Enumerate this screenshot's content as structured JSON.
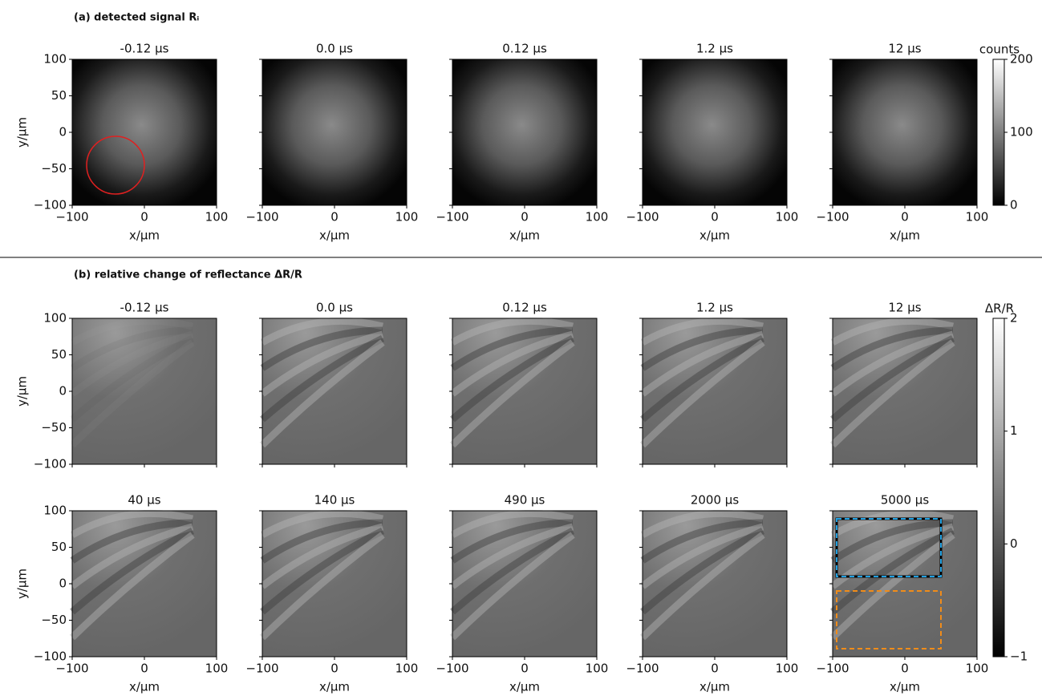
{
  "sections": [
    "(a) detected signal Rᵢ",
    "(b) relative change of reflectance ΔR/R"
  ],
  "chart_data": [
    {
      "type": "image",
      "title": "-0.12 µs",
      "xlim": [
        -100,
        100
      ],
      "ylim": [
        -100,
        100
      ],
      "xticks": [
        {
          "value": -100,
          "label": "−100"
        },
        0,
        100
      ],
      "yticks": [
        {
          "value": -100,
          "label": "−100"
        },
        {
          "value": -50,
          "label": "−50"
        },
        0,
        50,
        100
      ],
      "show_xticklabels": true,
      "show_yticklabels": true,
      "xlabel": "x/µm",
      "ylabel": "y/µm"
    },
    {
      "type": "image",
      "title": "0.0 µs",
      "xlim": [
        -100,
        100
      ],
      "ylim": [
        -100,
        100
      ],
      "xticks": [
        {
          "value": -100,
          "label": "−100"
        },
        0,
        100
      ],
      "yticks": [
        -100,
        -50,
        0,
        50,
        100
      ],
      "show_xticklabels": true,
      "show_yticklabels": false,
      "xlabel": "x/µm"
    },
    {
      "type": "image",
      "title": "0.12 µs",
      "xlim": [
        -100,
        100
      ],
      "ylim": [
        -100,
        100
      ],
      "xticks": [
        {
          "value": -100,
          "label": "−100"
        },
        0,
        100
      ],
      "yticks": [
        -100,
        -50,
        0,
        50,
        100
      ],
      "show_xticklabels": true,
      "show_yticklabels": false,
      "xlabel": "x/µm"
    },
    {
      "type": "image",
      "title": "1.2 µs",
      "xlim": [
        -100,
        100
      ],
      "ylim": [
        -100,
        100
      ],
      "xticks": [
        {
          "value": -100,
          "label": "−100"
        },
        0,
        100
      ],
      "yticks": [
        -100,
        -50,
        0,
        50,
        100
      ],
      "show_xticklabels": true,
      "show_yticklabels": false,
      "xlabel": "x/µm"
    },
    {
      "type": "image",
      "title": "12 µs",
      "xlim": [
        -100,
        100
      ],
      "ylim": [
        -100,
        100
      ],
      "xticks": [
        {
          "value": -100,
          "label": "−100"
        },
        0,
        100
      ],
      "yticks": [
        -100,
        -50,
        0,
        50,
        100
      ],
      "show_xticklabels": true,
      "show_yticklabels": false,
      "xlabel": "x/µm"
    },
    {
      "type": "image",
      "title": "-0.12 µs",
      "xlim": [
        -100,
        100
      ],
      "ylim": [
        -100,
        100
      ],
      "xticks": [
        -100,
        0,
        100
      ],
      "yticks": [
        {
          "value": -100,
          "label": "−100"
        },
        {
          "value": -50,
          "label": "−50"
        },
        0,
        50,
        100
      ],
      "show_xticklabels": false,
      "show_yticklabels": true,
      "ylabel": "y/µm"
    },
    {
      "type": "image",
      "title": "0.0 µs",
      "xlim": [
        -100,
        100
      ],
      "ylim": [
        -100,
        100
      ],
      "xticks": [
        -100,
        0,
        100
      ],
      "yticks": [
        -100,
        -50,
        0,
        50,
        100
      ],
      "show_xticklabels": false,
      "show_yticklabels": false
    },
    {
      "type": "image",
      "title": "0.12 µs",
      "xlim": [
        -100,
        100
      ],
      "ylim": [
        -100,
        100
      ],
      "xticks": [
        -100,
        0,
        100
      ],
      "yticks": [
        -100,
        -50,
        0,
        50,
        100
      ],
      "show_xticklabels": false,
      "show_yticklabels": false
    },
    {
      "type": "image",
      "title": "1.2 µs",
      "xlim": [
        -100,
        100
      ],
      "ylim": [
        -100,
        100
      ],
      "xticks": [
        -100,
        0,
        100
      ],
      "yticks": [
        -100,
        -50,
        0,
        50,
        100
      ],
      "show_xticklabels": false,
      "show_yticklabels": false
    },
    {
      "type": "image",
      "title": "12 µs",
      "xlim": [
        -100,
        100
      ],
      "ylim": [
        -100,
        100
      ],
      "xticks": [
        -100,
        0,
        100
      ],
      "yticks": [
        -100,
        -50,
        0,
        50,
        100
      ],
      "show_xticklabels": false,
      "show_yticklabels": false
    },
    {
      "type": "image",
      "title": "40 µs",
      "xlim": [
        -100,
        100
      ],
      "ylim": [
        -100,
        100
      ],
      "xticks": [
        {
          "value": -100,
          "label": "−100"
        },
        0,
        100
      ],
      "yticks": [
        {
          "value": -100,
          "label": "−100"
        },
        {
          "value": -50,
          "label": "−50"
        },
        0,
        50,
        100
      ],
      "show_xticklabels": true,
      "show_yticklabels": true,
      "xlabel": "x/µm",
      "ylabel": "y/µm"
    },
    {
      "type": "image",
      "title": "140 µs",
      "xlim": [
        -100,
        100
      ],
      "ylim": [
        -100,
        100
      ],
      "xticks": [
        {
          "value": -100,
          "label": "−100"
        },
        0,
        100
      ],
      "yticks": [
        -100,
        -50,
        0,
        50,
        100
      ],
      "show_xticklabels": true,
      "show_yticklabels": false,
      "xlabel": "x/µm"
    },
    {
      "type": "image",
      "title": "490 µs",
      "xlim": [
        -100,
        100
      ],
      "ylim": [
        -100,
        100
      ],
      "xticks": [
        {
          "value": -100,
          "label": "−100"
        },
        0,
        100
      ],
      "yticks": [
        -100,
        -50,
        0,
        50,
        100
      ],
      "show_xticklabels": true,
      "show_yticklabels": false,
      "xlabel": "x/µm"
    },
    {
      "type": "image",
      "title": "2000 µs",
      "xlim": [
        -100,
        100
      ],
      "ylim": [
        -100,
        100
      ],
      "xticks": [
        {
          "value": -100,
          "label": "−100"
        },
        0,
        100
      ],
      "yticks": [
        -100,
        -50,
        0,
        50,
        100
      ],
      "show_xticklabels": true,
      "show_yticklabels": false,
      "xlabel": "x/µm"
    },
    {
      "type": "image",
      "title": "5000 µs",
      "xlim": [
        -100,
        100
      ],
      "ylim": [
        -100,
        100
      ],
      "xticks": [
        {
          "value": -100,
          "label": "−100"
        },
        0,
        100
      ],
      "yticks": [
        -100,
        -50,
        0,
        50,
        100
      ],
      "show_xticklabels": true,
      "show_yticklabels": false,
      "xlabel": "x/µm"
    },
    {
      "type": "colorbar",
      "label": "counts",
      "ylim": [
        0,
        200
      ],
      "yticks": [
        0,
        100,
        200
      ]
    },
    {
      "type": "colorbar",
      "label": "ΔR/R",
      "ylim": [
        -1,
        2
      ],
      "yticks": [
        {
          "value": -1,
          "label": "−1"
        },
        0,
        1,
        2
      ]
    }
  ]
}
